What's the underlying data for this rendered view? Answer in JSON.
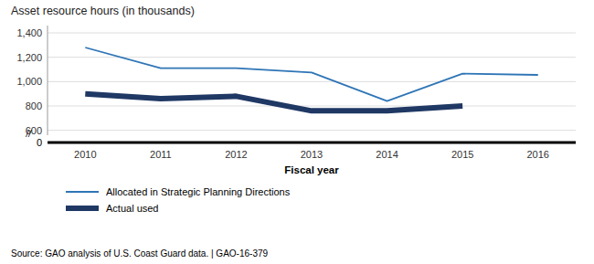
{
  "chart_data": {
    "type": "line",
    "title": "Asset resource hours (in thousands)",
    "x_label": "Fiscal year",
    "x": [
      2010,
      2011,
      2012,
      2013,
      2014,
      2015,
      2016
    ],
    "xlim": [
      2009.5,
      2016.5
    ],
    "xticks": [
      2010,
      2011,
      2012,
      2013,
      2014,
      2015,
      2016
    ],
    "ylim": [
      560,
      1460
    ],
    "yticks": [
      600,
      800,
      {
        "value": 1000,
        "label": "1,000"
      },
      {
        "value": 1200,
        "label": "1,200"
      },
      {
        "value": 1400,
        "label": "1,400"
      }
    ],
    "grid": true,
    "legend": "bottom",
    "series": [
      {
        "name": "Allocated in Strategic Planning Directions",
        "color": "#2E75B6",
        "values": [
          1280,
          1110,
          1110,
          1075,
          840,
          1065,
          1055
        ]
      },
      {
        "name": "Actual used",
        "color": "#1F3864",
        "values": [
          900,
          860,
          880,
          760,
          760,
          800,
          null
        ]
      }
    ],
    "annotations": [
      "0",
      "//",
      "Source: GAO analysis of U.S. Coast Guard data.  |  GAO-16-379"
    ]
  }
}
